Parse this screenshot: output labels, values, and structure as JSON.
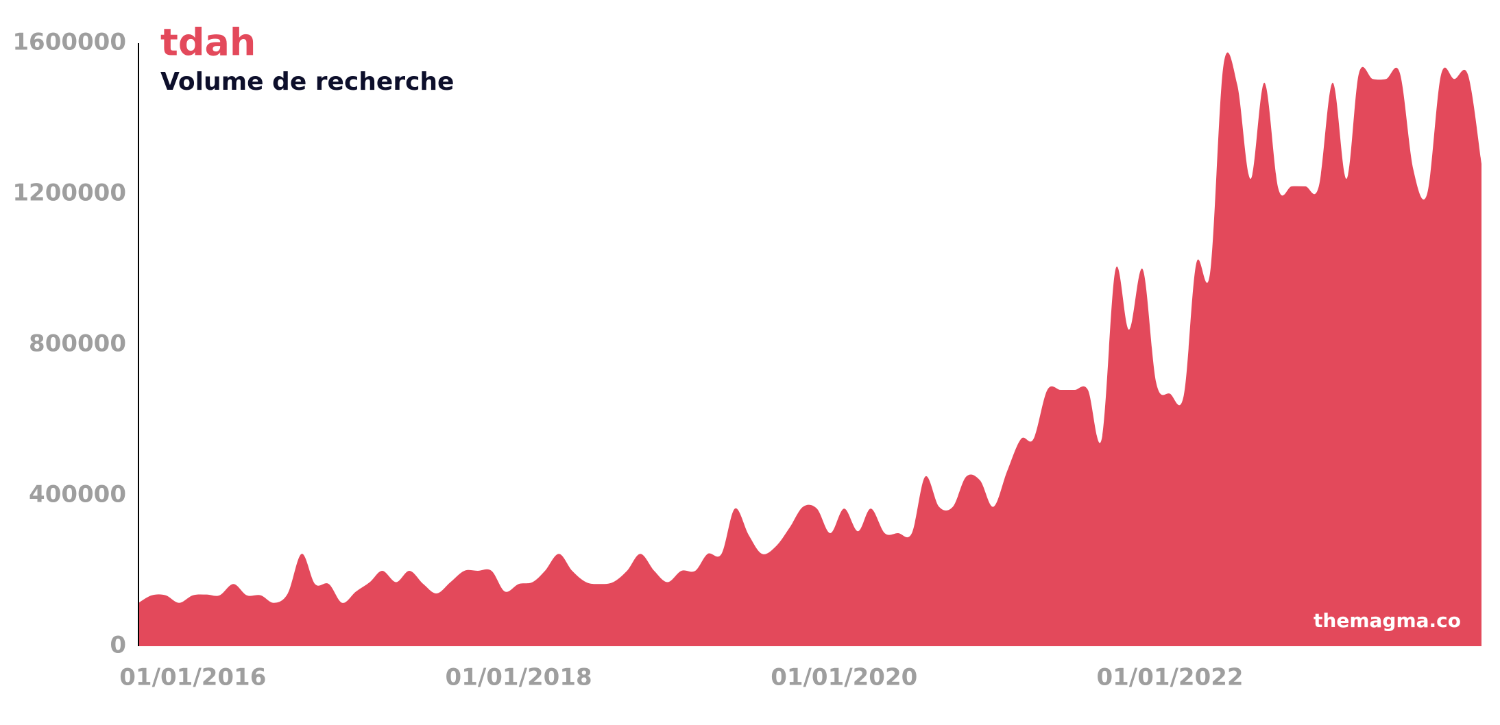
{
  "chart_data": {
    "type": "area",
    "title": "tdah",
    "subtitle": "Volume de recherche",
    "watermark": "themagma.co",
    "x": [
      "2015-09-01",
      "2015-10-01",
      "2015-11-01",
      "2015-12-01",
      "2016-01-01",
      "2016-02-01",
      "2016-03-01",
      "2016-04-01",
      "2016-05-01",
      "2016-06-01",
      "2016-07-01",
      "2016-08-01",
      "2016-09-01",
      "2016-10-01",
      "2016-11-01",
      "2016-12-01",
      "2017-01-01",
      "2017-02-01",
      "2017-03-01",
      "2017-04-01",
      "2017-05-01",
      "2017-06-01",
      "2017-07-01",
      "2017-08-01",
      "2017-09-01",
      "2017-10-01",
      "2017-11-01",
      "2017-12-01",
      "2018-01-01",
      "2018-02-01",
      "2018-03-01",
      "2018-04-01",
      "2018-05-01",
      "2018-06-01",
      "2018-07-01",
      "2018-08-01",
      "2018-09-01",
      "2018-10-01",
      "2018-11-01",
      "2018-12-01",
      "2019-01-01",
      "2019-02-01",
      "2019-03-01",
      "2019-04-01",
      "2019-05-01",
      "2019-06-01",
      "2019-07-01",
      "2019-08-01",
      "2019-09-01",
      "2019-10-01",
      "2019-11-01",
      "2019-12-01",
      "2020-01-01",
      "2020-02-01",
      "2020-03-01",
      "2020-04-01",
      "2020-05-01",
      "2020-06-01",
      "2020-07-01",
      "2020-08-01",
      "2020-09-01",
      "2020-10-01",
      "2020-11-01",
      "2020-12-01",
      "2021-01-01",
      "2021-02-01",
      "2021-03-01",
      "2021-04-01",
      "2021-05-01",
      "2021-06-01",
      "2021-07-01",
      "2021-08-01",
      "2021-09-01",
      "2021-10-01",
      "2021-11-01",
      "2021-12-01",
      "2022-01-01",
      "2022-02-01",
      "2022-03-01",
      "2022-04-01",
      "2022-05-01",
      "2022-06-01",
      "2022-07-01",
      "2022-08-01",
      "2022-09-01",
      "2022-10-01",
      "2022-11-01",
      "2022-12-01",
      "2023-01-01",
      "2023-02-01",
      "2023-03-01",
      "2023-04-01",
      "2023-05-01",
      "2023-06-01",
      "2023-07-01",
      "2023-08-01",
      "2023-09-01",
      "2023-10-01",
      "2023-11-01",
      "2023-12-01"
    ],
    "series": [
      {
        "name": "tdah",
        "color": "#e3495b",
        "values": [
          115000,
          135000,
          135000,
          115000,
          135000,
          137000,
          135000,
          165000,
          135000,
          135000,
          115000,
          140000,
          245000,
          165000,
          165000,
          115000,
          145000,
          170000,
          200000,
          170000,
          200000,
          165000,
          140000,
          170000,
          200000,
          200000,
          200000,
          145000,
          165000,
          170000,
          200000,
          245000,
          200000,
          170000,
          165000,
          170000,
          200000,
          245000,
          200000,
          170000,
          200000,
          200000,
          245000,
          245000,
          365000,
          295000,
          245000,
          265000,
          315000,
          370000,
          365000,
          300000,
          365000,
          305000,
          365000,
          300000,
          300000,
          300000,
          450000,
          370000,
          370000,
          450000,
          440000,
          370000,
          465000,
          550000,
          550000,
          680000,
          680000,
          680000,
          680000,
          550000,
          1000000,
          840000,
          1000000,
          700000,
          670000,
          665000,
          1015000,
          990000,
          1540000,
          1490000,
          1240000,
          1495000,
          1215000,
          1220000,
          1220000,
          1220000,
          1495000,
          1240000,
          1520000,
          1505000,
          1505000,
          1520000,
          1265000,
          1200000,
          1515000,
          1505000,
          1515000,
          1280000
        ]
      }
    ],
    "xlim": [
      "2015-09-01",
      "2023-12-01"
    ],
    "xticks": [
      {
        "value": "2016-01-01",
        "label": "01/01/2016"
      },
      {
        "value": "2018-01-01",
        "label": "01/01/2018"
      },
      {
        "value": "2020-01-01",
        "label": "01/01/2020"
      },
      {
        "value": "2022-01-01",
        "label": "01/01/2022"
      }
    ],
    "ylim": [
      0,
      1600000
    ],
    "yticks": [
      0,
      400000,
      800000,
      1200000,
      1600000
    ],
    "grid": false
  }
}
